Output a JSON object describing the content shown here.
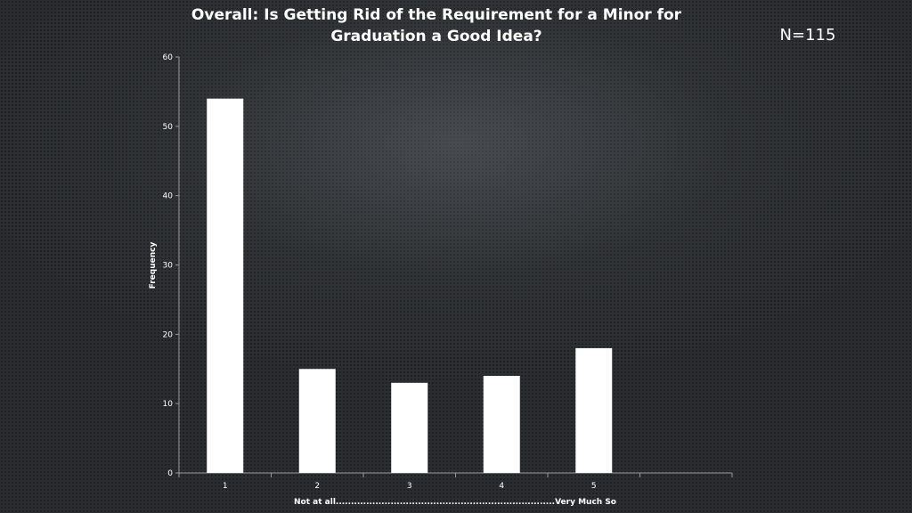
{
  "header": {
    "title_line1": "Overall: Is Getting Rid of the Requirement for a Minor for",
    "title_line2": "Graduation a Good Idea?",
    "n_label": "N=115"
  },
  "chart_data": {
    "type": "bar",
    "title": "Overall: Is Getting Rid of the Requirement for a Minor for Graduation a Good Idea?",
    "categories": [
      "1",
      "2",
      "3",
      "4",
      "5"
    ],
    "values": [
      54,
      15,
      13,
      14,
      18
    ],
    "xlabel": "Not at all........................................................................Very Much So",
    "ylabel": "Frequency",
    "ylim": [
      0,
      60
    ],
    "yticks": [
      0,
      10,
      20,
      30,
      40,
      50,
      60
    ],
    "bar_color": "#ffffff",
    "axis_color": "#9a9a9a",
    "grid": false,
    "legend": "none"
  }
}
